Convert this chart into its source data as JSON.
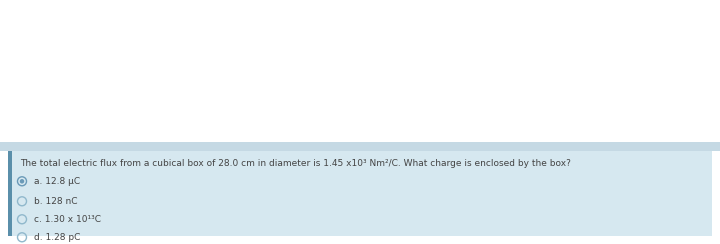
{
  "bg_top_color": "#f0f0f0",
  "bg_color": "#ffffff",
  "thin_bar_color": "#c5d9e4",
  "card_color": "#d6e8f0",
  "left_bar_color": "#5a8faa",
  "question": "The total electric flux from a cubical box of 28.0 cm in diameter is 1.45 x10³ Nm²/C. What charge is enclosed by the box?",
  "options": [
    {
      "label": "a. 12.8 μC",
      "selected": true
    },
    {
      "label": "b. 128 nC",
      "selected": false
    },
    {
      "label": "c. 1.30 x 10¹³C",
      "selected": false
    },
    {
      "label": "d. 1.28 pC",
      "selected": false
    }
  ],
  "question_fontsize": 6.5,
  "option_fontsize": 6.5,
  "text_color": "#444444",
  "selected_circle_color": "#6a9ab8",
  "unselected_circle_color": "#90b8cc"
}
